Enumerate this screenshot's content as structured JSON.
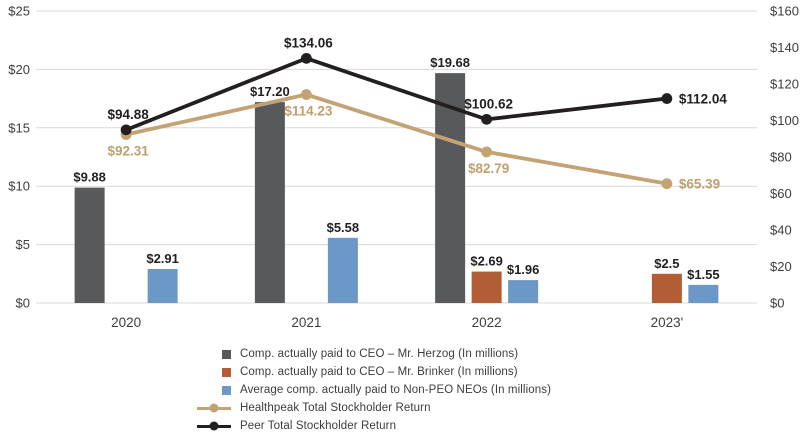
{
  "colors": {
    "gray": "#58595b",
    "orange": "#b25d33",
    "blue": "#6b98c6",
    "tan": "#c3a274",
    "black": "#231f20",
    "grid": "#d8d8d8",
    "axis_text": "#3e3e3e"
  },
  "chart_data": {
    "type": "bar+line combo",
    "categories": [
      "2020",
      "2021",
      "2022",
      "2023'"
    ],
    "bar_series": [
      {
        "name": "Comp. actually paid to CEO – Mr. Herzog (In millions)",
        "color_key": "gray",
        "slot": 0,
        "values": [
          9.88,
          17.2,
          19.68,
          null
        ],
        "labels": [
          "$9.88",
          "$17.20",
          "$19.68",
          null
        ]
      },
      {
        "name": "Comp. actually paid to CEO – Mr. Brinker (In millions)",
        "color_key": "orange",
        "slot": 1,
        "values": [
          null,
          null,
          2.69,
          2.5
        ],
        "labels": [
          null,
          null,
          "$2.69",
          "$2.5"
        ]
      },
      {
        "name": "Average comp. actually paid to Non-PEO NEOs (In millions)",
        "color_key": "blue",
        "slot": 2,
        "values": [
          2.91,
          5.58,
          1.96,
          1.55
        ],
        "labels": [
          "$2.91",
          "$5.58",
          "$1.96",
          "$1.55"
        ]
      }
    ],
    "line_series": [
      {
        "name": "Healthpeak Total Stockholder Return",
        "color_key": "tan",
        "values": [
          92.31,
          114.23,
          82.79,
          65.39
        ],
        "labels": [
          "$92.31",
          "$114.23",
          "$82.79",
          "$65.39"
        ],
        "label_pos": [
          "below",
          "below",
          "below",
          "right"
        ]
      },
      {
        "name": "Peer Total Stockholder Return",
        "color_key": "black",
        "values": [
          94.88,
          134.06,
          100.62,
          112.04
        ],
        "labels": [
          "$94.88",
          "$134.06",
          "$100.62",
          "$112.04"
        ],
        "label_pos": [
          "above",
          "above",
          "above",
          "right"
        ]
      }
    ],
    "left_axis": {
      "min": 0,
      "max": 25,
      "tick_step": 5,
      "tick_labels": [
        "$0",
        "$5",
        "$10",
        "$15",
        "$20",
        "$25"
      ]
    },
    "right_axis": {
      "min": 0,
      "max": 160,
      "tick_step": 20,
      "tick_labels": [
        "$0",
        "$20",
        "$40",
        "$60",
        "$80",
        "$100",
        "$120",
        "$140",
        "$160"
      ]
    },
    "grid": "horizontal",
    "legend_position": "bottom"
  },
  "legend": {
    "items": [
      {
        "label": "Comp. actually paid to CEO – Mr. Herzog (In millions)",
        "swatch": "square",
        "color_key": "gray"
      },
      {
        "label": "Comp. actually paid to CEO – Mr. Brinker (In millions)",
        "swatch": "square",
        "color_key": "orange"
      },
      {
        "label": "Average comp. actually paid to Non-PEO NEOs (In millions)",
        "swatch": "square",
        "color_key": "blue"
      },
      {
        "label": "Healthpeak Total Stockholder Return",
        "swatch": "line",
        "color_key": "tan"
      },
      {
        "label": "Peer Total Stockholder Return",
        "swatch": "line",
        "color_key": "black"
      }
    ]
  }
}
